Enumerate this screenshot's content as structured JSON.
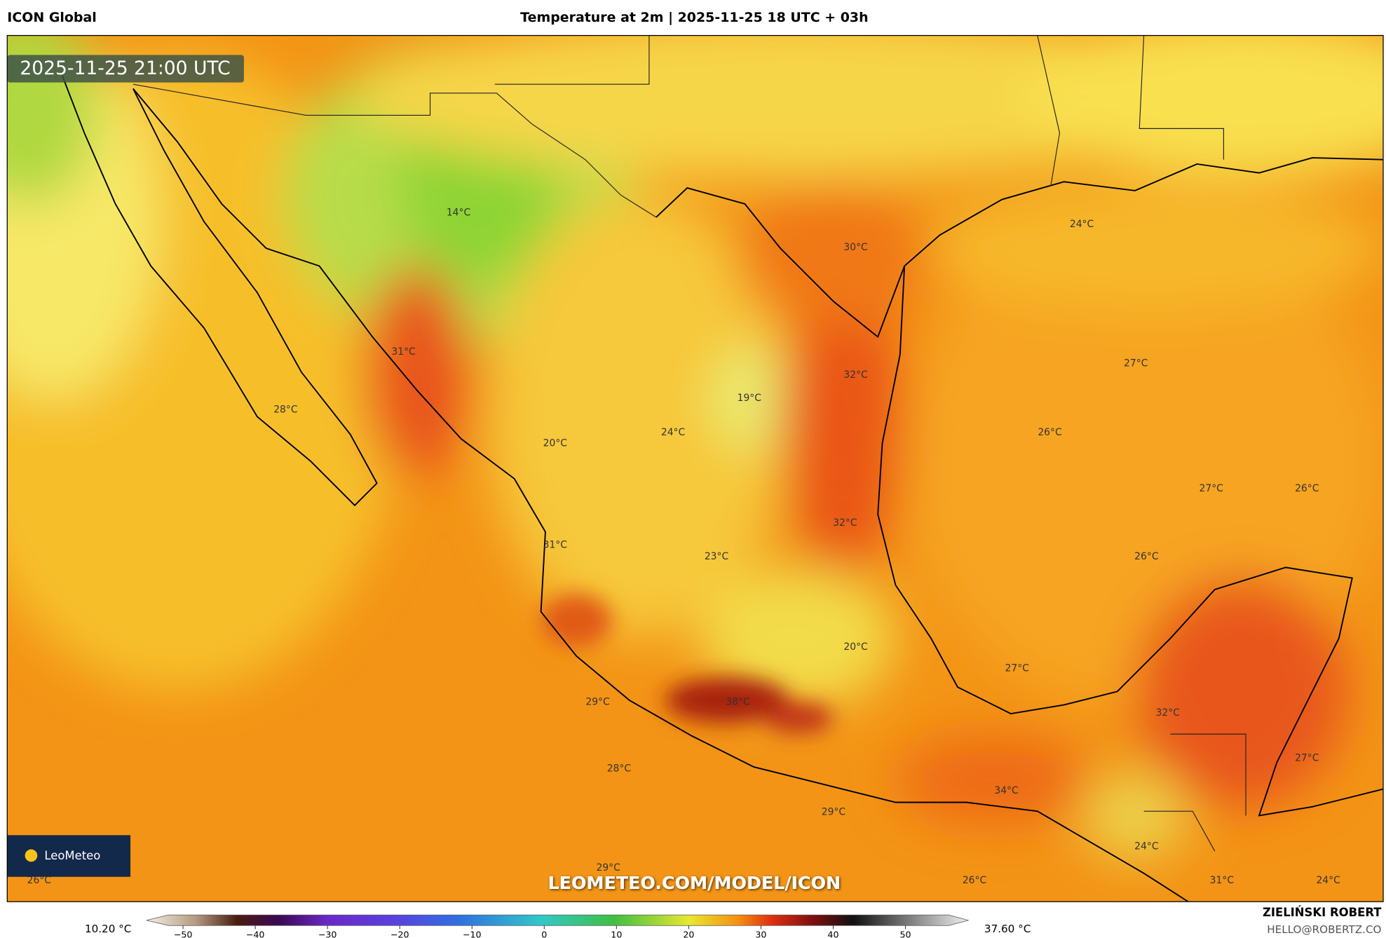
{
  "header": {
    "model": "ICON Global",
    "title": "Temperature at 2m | 2025-11-25 18 UTC + 03h"
  },
  "timestamp": "2025-11-25 21:00 UTC",
  "map_labels": [
    "14°C",
    "30°C",
    "24°C",
    "31°C",
    "32°C",
    "27°C",
    "19°C",
    "28°C",
    "20°C",
    "24°C",
    "26°C",
    "27°C",
    "26°C",
    "32°C",
    "31°C",
    "23°C",
    "26°C",
    "20°C",
    "27°C",
    "29°C",
    "38°C",
    "32°C",
    "27°C",
    "28°C",
    "34°C",
    "29°C",
    "24°C",
    "29°C",
    "26°C",
    "26°C",
    "31°C",
    "24°C"
  ],
  "logo": "LeoMeteo",
  "watermark": "LEOMETEO.COM/MODEL/ICON",
  "colorbar": {
    "min_label": "10.20 °C",
    "max_label": "37.60 °C",
    "clim": [
      -52,
      56
    ],
    "ticks": [
      {
        "value": -50,
        "label": "−50"
      },
      {
        "value": -40,
        "label": "−40"
      },
      {
        "value": -30,
        "label": "−30"
      },
      {
        "value": -20,
        "label": "−20"
      },
      {
        "value": -10,
        "label": "−10"
      },
      0,
      10,
      20,
      30,
      40,
      50
    ]
  },
  "footer": {
    "author": "ZIELIŃSKI ROBERT",
    "email": "HELLO@ROBERTZ.CO"
  }
}
